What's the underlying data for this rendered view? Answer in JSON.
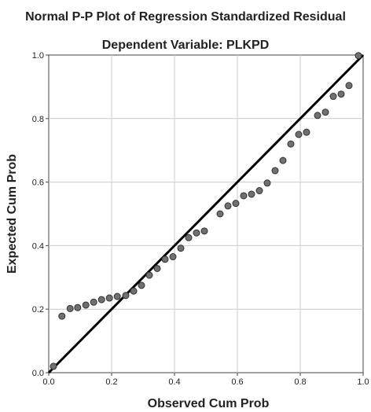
{
  "chart_data": {
    "type": "scatter",
    "title": "Normal P-P Plot of Regression Standardized Residual",
    "subtitle": "Dependent Variable: PLKPD",
    "xlabel": "Observed Cum Prob",
    "ylabel": "Expected Cum Prob",
    "xlim": [
      0,
      1
    ],
    "ylim": [
      0,
      1
    ],
    "xticks": [
      "0.0",
      "0.2",
      "0.4",
      "0.6",
      "0.8",
      "1.0"
    ],
    "yticks": [
      "0.0",
      "0.2",
      "0.4",
      "0.6",
      "0.8",
      "1.0"
    ],
    "grid": true,
    "reference_line": {
      "from": [
        0,
        0
      ],
      "to": [
        1,
        1
      ]
    },
    "colors": {
      "point_fill": "#707070",
      "point_stroke": "#333333",
      "line": "#000000",
      "grid": "#cccccc"
    },
    "points": [
      {
        "x": 0.015,
        "y": 0.02
      },
      {
        "x": 0.042,
        "y": 0.178
      },
      {
        "x": 0.068,
        "y": 0.202
      },
      {
        "x": 0.092,
        "y": 0.205
      },
      {
        "x": 0.118,
        "y": 0.213
      },
      {
        "x": 0.143,
        "y": 0.222
      },
      {
        "x": 0.168,
        "y": 0.23
      },
      {
        "x": 0.193,
        "y": 0.235
      },
      {
        "x": 0.218,
        "y": 0.24
      },
      {
        "x": 0.245,
        "y": 0.243
      },
      {
        "x": 0.27,
        "y": 0.257
      },
      {
        "x": 0.295,
        "y": 0.275
      },
      {
        "x": 0.32,
        "y": 0.307
      },
      {
        "x": 0.345,
        "y": 0.328
      },
      {
        "x": 0.37,
        "y": 0.357
      },
      {
        "x": 0.395,
        "y": 0.365
      },
      {
        "x": 0.42,
        "y": 0.392
      },
      {
        "x": 0.445,
        "y": 0.425
      },
      {
        "x": 0.47,
        "y": 0.44
      },
      {
        "x": 0.495,
        "y": 0.446
      },
      {
        "x": 0.545,
        "y": 0.5
      },
      {
        "x": 0.57,
        "y": 0.525
      },
      {
        "x": 0.595,
        "y": 0.533
      },
      {
        "x": 0.62,
        "y": 0.557
      },
      {
        "x": 0.645,
        "y": 0.562
      },
      {
        "x": 0.67,
        "y": 0.573
      },
      {
        "x": 0.695,
        "y": 0.597
      },
      {
        "x": 0.72,
        "y": 0.636
      },
      {
        "x": 0.745,
        "y": 0.668
      },
      {
        "x": 0.77,
        "y": 0.72
      },
      {
        "x": 0.795,
        "y": 0.75
      },
      {
        "x": 0.82,
        "y": 0.757
      },
      {
        "x": 0.855,
        "y": 0.81
      },
      {
        "x": 0.88,
        "y": 0.82
      },
      {
        "x": 0.905,
        "y": 0.87
      },
      {
        "x": 0.93,
        "y": 0.877
      },
      {
        "x": 0.955,
        "y": 0.904
      },
      {
        "x": 0.985,
        "y": 0.998
      }
    ]
  }
}
